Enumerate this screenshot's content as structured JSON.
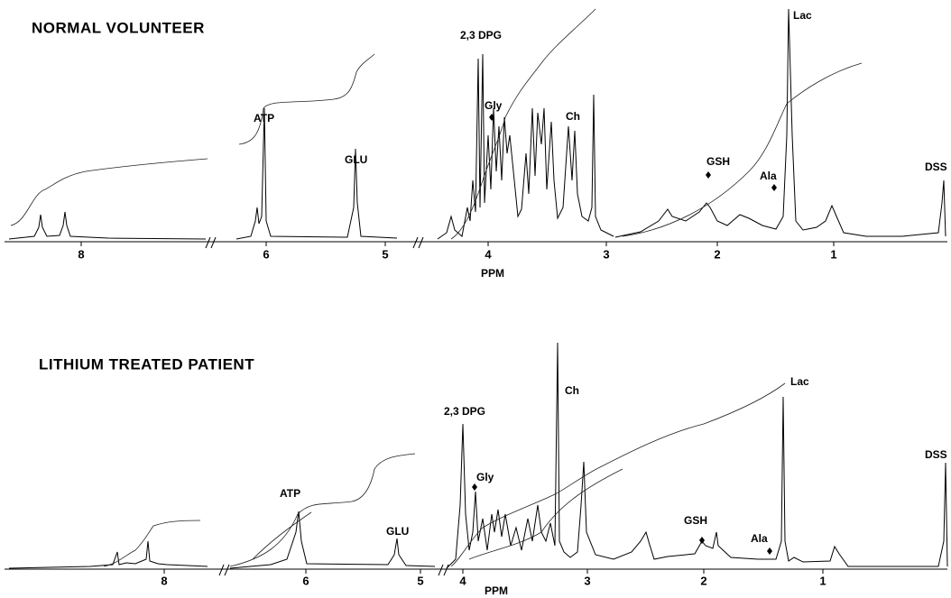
{
  "panels": [
    {
      "title": "NORMAL VOLUNTEER",
      "peak_labels": [
        "ATP",
        "GLU",
        "2,3 DPG",
        "Gly",
        "Ch",
        "GSH",
        "Ala",
        "Lac",
        "DSS"
      ],
      "tick_labels": [
        "8",
        "6",
        "5",
        "4",
        "3",
        "2",
        "1"
      ],
      "axis_label": "PPM"
    },
    {
      "title": "LITHIUM  TREATED  PATIENT",
      "peak_labels": [
        "ATP",
        "GLU",
        "2,3 DPG",
        "Gly",
        "Ch",
        "GSH",
        "Ala",
        "Lac",
        "DSS"
      ],
      "tick_labels": [
        "8",
        "6",
        "5",
        "4",
        "3",
        "2",
        "1"
      ],
      "axis_label": "PPM"
    }
  ]
}
